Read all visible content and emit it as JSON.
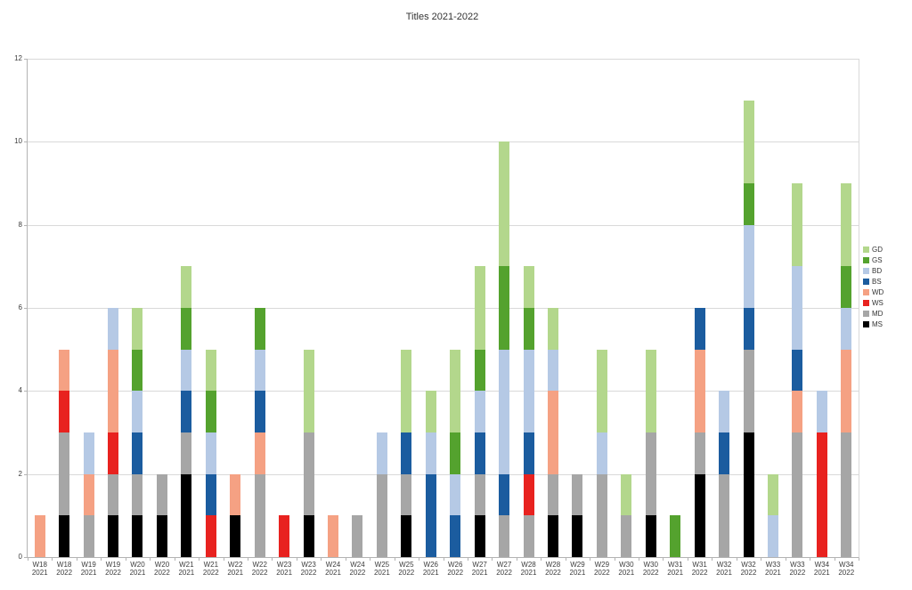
{
  "chart_data": {
    "type": "bar",
    "stacked": true,
    "title": "Titles 2021-2022",
    "xlabel": "",
    "ylabel": "",
    "ylim": [
      0,
      12
    ],
    "yticks": [
      0,
      2,
      4,
      6,
      8,
      10,
      12
    ],
    "grid": true,
    "legend_position": "right",
    "categories": [
      {
        "week": "W18",
        "year": "2021"
      },
      {
        "week": "W18",
        "year": "2022"
      },
      {
        "week": "W19",
        "year": "2021"
      },
      {
        "week": "W19",
        "year": "2022"
      },
      {
        "week": "W20",
        "year": "2021"
      },
      {
        "week": "W20",
        "year": "2022"
      },
      {
        "week": "W21",
        "year": "2021"
      },
      {
        "week": "W21",
        "year": "2022"
      },
      {
        "week": "W22",
        "year": "2021"
      },
      {
        "week": "W22",
        "year": "2022"
      },
      {
        "week": "W23",
        "year": "2021"
      },
      {
        "week": "W23",
        "year": "2022"
      },
      {
        "week": "W24",
        "year": "2021"
      },
      {
        "week": "W24",
        "year": "2022"
      },
      {
        "week": "W25",
        "year": "2021"
      },
      {
        "week": "W25",
        "year": "2022"
      },
      {
        "week": "W26",
        "year": "2021"
      },
      {
        "week": "W26",
        "year": "2022"
      },
      {
        "week": "W27",
        "year": "2021"
      },
      {
        "week": "W27",
        "year": "2022"
      },
      {
        "week": "W28",
        "year": "2021"
      },
      {
        "week": "W28",
        "year": "2022"
      },
      {
        "week": "W29",
        "year": "2021"
      },
      {
        "week": "W29",
        "year": "2022"
      },
      {
        "week": "W30",
        "year": "2021"
      },
      {
        "week": "W30",
        "year": "2022"
      },
      {
        "week": "W31",
        "year": "2021"
      },
      {
        "week": "W31",
        "year": "2022"
      },
      {
        "week": "W32",
        "year": "2021"
      },
      {
        "week": "W32",
        "year": "2022"
      },
      {
        "week": "W33",
        "year": "2021"
      },
      {
        "week": "W33",
        "year": "2022"
      },
      {
        "week": "W34",
        "year": "2021"
      },
      {
        "week": "W34",
        "year": "2022"
      }
    ],
    "series": [
      {
        "name": "MS",
        "color": "#000000",
        "values": [
          0,
          1,
          0,
          1,
          1,
          1,
          2,
          0,
          1,
          0,
          0,
          1,
          0,
          0,
          0,
          1,
          0,
          0,
          1,
          0,
          0,
          1,
          1,
          0,
          0,
          1,
          0,
          2,
          0,
          3,
          0,
          0,
          0,
          0
        ]
      },
      {
        "name": "MD",
        "color": "#a6a6a6",
        "values": [
          0,
          2,
          1,
          1,
          1,
          1,
          1,
          0,
          0,
          2,
          0,
          2,
          0,
          1,
          2,
          1,
          0,
          0,
          1,
          1,
          1,
          1,
          1,
          2,
          1,
          2,
          0,
          1,
          2,
          2,
          0,
          3,
          0,
          3
        ]
      },
      {
        "name": "WS",
        "color": "#e8221f",
        "values": [
          0,
          1,
          0,
          1,
          0,
          0,
          0,
          1,
          0,
          0,
          1,
          0,
          0,
          0,
          0,
          0,
          0,
          0,
          0,
          0,
          1,
          0,
          0,
          0,
          0,
          0,
          0,
          0,
          0,
          0,
          0,
          0,
          3,
          0
        ]
      },
      {
        "name": "WD",
        "color": "#f5a183",
        "values": [
          1,
          1,
          1,
          2,
          0,
          0,
          0,
          0,
          1,
          1,
          0,
          0,
          1,
          0,
          0,
          0,
          0,
          0,
          0,
          0,
          0,
          2,
          0,
          0,
          0,
          0,
          0,
          2,
          0,
          0,
          0,
          1,
          0,
          2
        ]
      },
      {
        "name": "BS",
        "color": "#1b5c9f",
        "values": [
          0,
          0,
          0,
          0,
          1,
          0,
          1,
          1,
          0,
          1,
          0,
          0,
          0,
          0,
          0,
          1,
          2,
          1,
          1,
          1,
          1,
          0,
          0,
          0,
          0,
          0,
          0,
          1,
          1,
          1,
          0,
          1,
          0,
          0
        ]
      },
      {
        "name": "BD",
        "color": "#b5c9e5",
        "values": [
          0,
          0,
          1,
          1,
          1,
          0,
          1,
          1,
          0,
          1,
          0,
          0,
          0,
          0,
          1,
          0,
          1,
          1,
          1,
          3,
          2,
          1,
          0,
          1,
          0,
          0,
          0,
          0,
          1,
          2,
          1,
          2,
          1,
          1
        ]
      },
      {
        "name": "GS",
        "color": "#54a22e",
        "values": [
          0,
          0,
          0,
          0,
          1,
          0,
          1,
          1,
          0,
          1,
          0,
          0,
          0,
          0,
          0,
          0,
          0,
          1,
          1,
          2,
          1,
          0,
          0,
          0,
          0,
          0,
          1,
          0,
          0,
          1,
          0,
          0,
          0,
          1
        ]
      },
      {
        "name": "GD",
        "color": "#b3d78c",
        "values": [
          0,
          0,
          0,
          0,
          1,
          0,
          1,
          1,
          0,
          0,
          0,
          2,
          0,
          0,
          0,
          2,
          1,
          2,
          2,
          3,
          1,
          1,
          0,
          2,
          1,
          2,
          0,
          0,
          0,
          2,
          1,
          2,
          0,
          2
        ]
      }
    ],
    "legend_order": [
      "GD",
      "GS",
      "BD",
      "BS",
      "WD",
      "WS",
      "MD",
      "MS"
    ],
    "colors": {
      "grid": "#d9d9d9",
      "axis": "#b3b3b3",
      "label_text": "#3c3c3c",
      "title_text": "#333333",
      "background": "#ffffff"
    }
  }
}
